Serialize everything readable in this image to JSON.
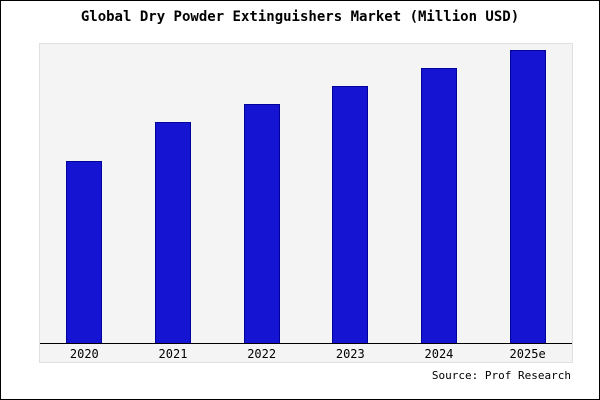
{
  "title": "Global Dry Powder Extinguishers Market (Million USD)",
  "source": "Source: Prof Research",
  "chart_data": {
    "type": "bar",
    "title": "Global Dry Powder Extinguishers Market (Million USD)",
    "categories": [
      "2020",
      "2021",
      "2022",
      "2023",
      "2024",
      "2025e"
    ],
    "values": [
      61,
      74,
      80,
      86,
      92,
      98
    ],
    "xlabel": "",
    "ylabel": "",
    "ylim": [
      0,
      100
    ],
    "grid": false,
    "legend": false,
    "bar_color": "#1414d2",
    "bar_border_color": "#000099",
    "plot_background": "#f4f4f4",
    "note": "No y-axis tick labels shown; values are relative heights (percent of tallest-bar scale)."
  }
}
